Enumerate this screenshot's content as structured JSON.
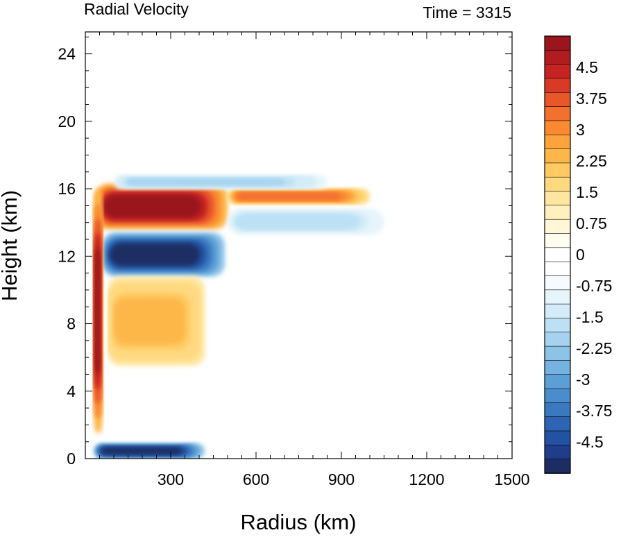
{
  "chart_data": {
    "type": "heatmap",
    "title": "Radial Velocity",
    "subtitle": "Time = 3315",
    "xlabel": "Radius (km)",
    "ylabel": "Height (km)",
    "xlim": [
      0,
      1500
    ],
    "ylim": [
      0,
      25.3
    ],
    "x_ticks": [
      "300",
      "600",
      "900",
      "1200",
      "1500"
    ],
    "y_ticks": [
      "0",
      "4",
      "8",
      "12",
      "16",
      "20",
      "24"
    ],
    "colorbar": {
      "tick_labels": [
        "4.5",
        "3.75",
        "3",
        "2.25",
        "1.5",
        "0.75",
        "0",
        "-0.75",
        "-1.5",
        "-2.25",
        "-3",
        "-3.75",
        "-4.5"
      ],
      "tick_values": [
        4.5,
        3.75,
        3,
        2.25,
        1.5,
        0.75,
        0,
        -0.75,
        -1.5,
        -2.25,
        -3,
        -3.75,
        -4.5
      ],
      "min": -5.25,
      "max": 5.25,
      "colors": [
        "#1b2d63",
        "#1f3d8a",
        "#2452a3",
        "#2d64b3",
        "#3a78c0",
        "#4a8ccc",
        "#5c9fd6",
        "#74b2df",
        "#8cc3e7",
        "#a5d3ef",
        "#bde1f4",
        "#d3ecf8",
        "#e6f4fb",
        "#f5fbfe",
        "#ffffff",
        "#ffffff",
        "#fffdf0",
        "#fff7d6",
        "#fff0bd",
        "#ffe6a0",
        "#ffd980",
        "#ffca62",
        "#fdb748",
        "#fca33a",
        "#f98a32",
        "#f3702d",
        "#e95629",
        "#d93a25",
        "#c62423",
        "#b01c20",
        "#9a161c"
      ]
    },
    "features": [
      {
        "name": "upper-level outflow",
        "sign": "positive",
        "x_range": [
          35,
          500
        ],
        "z_range": [
          13.6,
          16.3
        ],
        "peak_value": 5.25
      },
      {
        "name": "outflow extension",
        "sign": "positive",
        "x_range": [
          500,
          1000
        ],
        "z_range": [
          15.1,
          16.0
        ],
        "peak_value": 3.5
      },
      {
        "name": "return inflow layer",
        "sign": "negative",
        "x_range": [
          60,
          490
        ],
        "z_range": [
          10.8,
          13.4
        ],
        "peak_value": -5.0
      },
      {
        "name": "upper inflow",
        "sign": "negative",
        "x_range": [
          100,
          850
        ],
        "z_range": [
          16.0,
          16.8
        ],
        "peak_value": -2.0
      },
      {
        "name": "outer negative band",
        "sign": "negative",
        "x_range": [
          500,
          1050
        ],
        "z_range": [
          13.3,
          14.8
        ],
        "peak_value": -1.8
      },
      {
        "name": "eyewall outflow column",
        "sign": "positive",
        "x_range": [
          30,
          60
        ],
        "z_range": [
          1.5,
          16.0
        ],
        "peak_value": 5.25
      },
      {
        "name": "boundary layer inflow",
        "sign": "negative",
        "x_range": [
          30,
          420
        ],
        "z_range": [
          0,
          0.9
        ],
        "peak_value": -5.25
      },
      {
        "name": "mid-level outflow bands",
        "sign": "positive",
        "x_range": [
          80,
          420
        ],
        "z_range": [
          5.5,
          10.8
        ],
        "peak_value": 2.5
      }
    ]
  }
}
